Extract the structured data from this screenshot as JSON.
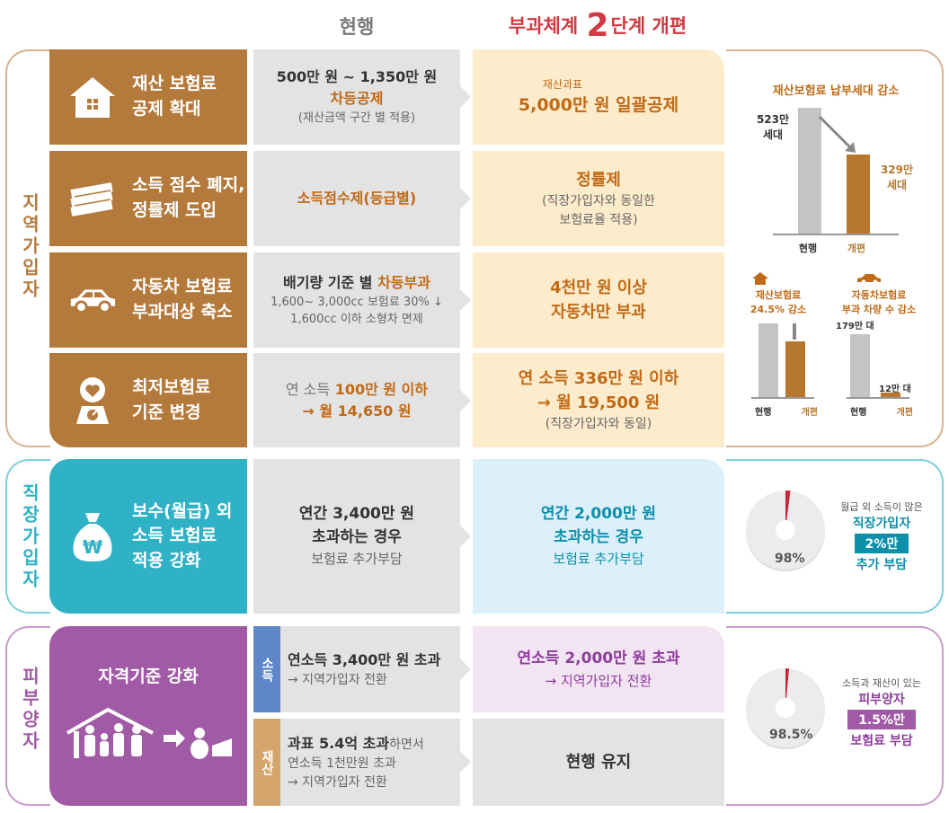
{
  "header": {
    "current": "현행",
    "new_prefix": "부과체계",
    "new_num": "2",
    "new_suffix": "단계 개편"
  },
  "groups": {
    "regional": "지역가입자",
    "employee": "직장가입자",
    "dependent": "피부양자"
  },
  "rows": [
    {
      "label1": "재산 보험료",
      "label2": "공제 확대",
      "icon": "house-icon",
      "cur1": "500만 원 ~ 1,350만 원",
      "cur2": "차등공제",
      "cur3": "(재산금액 구간 별 적용)",
      "new_small": "재산과표",
      "new1": "5,000만 원 일괄공제"
    },
    {
      "label1": "소득 점수 폐지,",
      "label2": "정률제 도입",
      "icon": "money-stack-icon",
      "cur1": "소득점수제(등급별)",
      "new1": "정률제",
      "new2": "(직장가입자와 동일한",
      "new3": "보험료율 적용)"
    },
    {
      "label1": "자동차 보험료",
      "label2": "부과대상 축소",
      "icon": "car-icon",
      "cur1a": "배기량 기준 별",
      "cur1b": "차등부과",
      "cur2": "1,600~ 3,000cc 보험료 30% ↓",
      "cur3": "1,600cc 이하 소형차 면제",
      "new1": "4천만 원 이상",
      "new2": "자동차만 부과"
    },
    {
      "label1": "최저보험료",
      "label2": "기준 변경",
      "icon": "scale-heart-icon",
      "cur1a": "연 소득",
      "cur1b": "100만 원 이하",
      "cur2": "→ 월 14,650 원",
      "new1": "연 소득 336만 원 이하",
      "new2": "→ 월 19,500 원",
      "new3": "(직장가입자와 동일)"
    }
  ],
  "employee": {
    "label1": "보수(월급) 외",
    "label2": "소득 보험료",
    "label3": "적용 강화",
    "cur1": "연간 3,400만 원",
    "cur2": "초과하는 경우",
    "cur3": "보험료 추가부담",
    "new1": "연간 2,000만 원",
    "new2": "초과하는 경우",
    "new3": "보험료 추가부담"
  },
  "dependent": {
    "label": "자격기준 강화",
    "tag1": "소득",
    "tag2": "재산",
    "cur1a": "연소득 3,400만 원 초과",
    "cur1b": "→ 지역가입자 전환",
    "cur2a": "과표 5.4억 초과",
    "cur2a2": "하면서",
    "cur2b": "연소득 1천만원 초과",
    "cur2c": "→ 지역가입자 전환",
    "new1a": "연소득 2,000만 원 초과",
    "new1b": "→ 지역가입자 전환",
    "new2": "현행 유지"
  },
  "side": {
    "top_title": "재산보험료 납부세대 감소",
    "top_cur_val": "523만",
    "top_cur_unit": "세대",
    "top_new_val": "329만",
    "top_new_unit": "세대",
    "lbl_cur": "현행",
    "lbl_new": "개편",
    "mid_left_title1": "재산보험료",
    "mid_left_title2": "24.5% 감소",
    "mid_right_title1": "자동차보험료",
    "mid_right_title2": "부과 차량 수 감소",
    "mid_right_cur": "179만 대",
    "mid_right_new": "12만 대",
    "emp_pct": "98%",
    "emp_note1": "월급 외 소득이 많은",
    "emp_note2": "직장가입자",
    "emp_badge": "2%만",
    "emp_note3": "추가 부담",
    "dep_pct": "98.5%",
    "dep_note1": "소득과 재산이 있는",
    "dep_note2": "피부양자",
    "dep_badge": "1.5%만",
    "dep_note3": "보험료 부담"
  },
  "chart_data": [
    {
      "type": "bar",
      "title": "재산보험료 납부세대 감소",
      "categories": [
        "현행",
        "개편"
      ],
      "values": [
        523,
        329
      ],
      "unit": "만 세대"
    },
    {
      "type": "bar",
      "title": "재산보험료 24.5% 감소",
      "categories": [
        "현행",
        "개편"
      ],
      "values": [
        100,
        75.5
      ]
    },
    {
      "type": "bar",
      "title": "자동차보험료 부과 차량 수 감소",
      "categories": [
        "현행",
        "개편"
      ],
      "values": [
        179,
        12
      ],
      "unit": "만 대"
    },
    {
      "type": "pie",
      "values": [
        98,
        2
      ]
    },
    {
      "type": "pie",
      "values": [
        98.5,
        1.5
      ]
    }
  ],
  "colors": {
    "brown": "#b47a3c",
    "teal": "#2fb1c6",
    "purple": "#a15aa5",
    "orange": "#c06a17",
    "red": "#d03a42"
  }
}
